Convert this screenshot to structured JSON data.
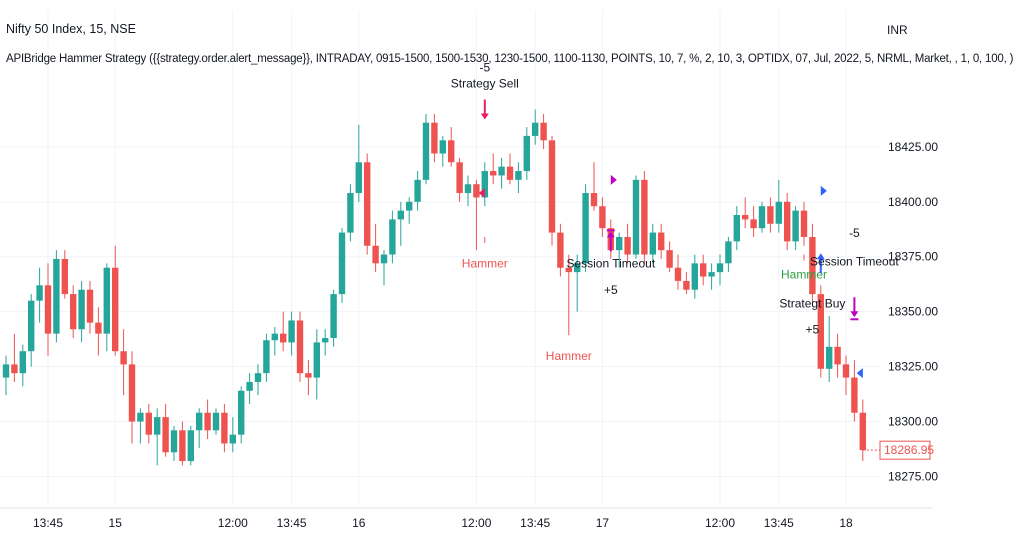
{
  "header": {
    "symbol": "Nifty 50 Index, 15, NSE",
    "strategy": "APIBridge Hammer Strategy ({{strategy.order.alert_message}}, INTRADAY, 0915-1500, 1500-1530, 1230-1500, 1100-1130, POINTS, 10, 7, %, 2, 10, 3, OPTIDX, 07, Jul, 2022, 5, NRML, Market, , 1, 0, 100, )",
    "currency": "INR"
  },
  "last_price": {
    "label": "18286.95",
    "value": 18286.95
  },
  "colors": {
    "up": "#26a69a",
    "down": "#ef5350",
    "buy_arrow": "#2962ff",
    "sell_arrow": "#e91e63",
    "exit_arrow": "#c000c0",
    "hammer_green": "#2e9e3f",
    "grid": "#f0f3fa"
  },
  "chart_data": {
    "type": "candlestick",
    "ylim": [
      18262,
      18460
    ],
    "y_ticks": [
      18275.0,
      18300.0,
      18325.0,
      18350.0,
      18375.0,
      18400.0,
      18425.0
    ],
    "y_tick_labels": [
      "18275.00",
      "18300.00",
      "18325.00",
      "18350.00",
      "18375.00",
      "18400.00",
      "18425.00"
    ],
    "x_tick_labels": [
      {
        "label": "13:45",
        "bar": 5
      },
      {
        "label": "15",
        "bar": 13
      },
      {
        "label": "12:00",
        "bar": 27
      },
      {
        "label": "13:45",
        "bar": 34
      },
      {
        "label": "16",
        "bar": 42
      },
      {
        "label": "12:00",
        "bar": 56
      },
      {
        "label": "13:45",
        "bar": 63
      },
      {
        "label": "17",
        "bar": 71
      },
      {
        "label": "12:00",
        "bar": 85
      },
      {
        "label": "13:45",
        "bar": 92
      },
      {
        "label": "18",
        "bar": 100
      }
    ],
    "candles": [
      [
        18320,
        18330,
        18312,
        18326
      ],
      [
        18326,
        18340,
        18318,
        18322
      ],
      [
        18322,
        18335,
        18316,
        18332
      ],
      [
        18332,
        18358,
        18325,
        18355
      ],
      [
        18355,
        18370,
        18345,
        18362
      ],
      [
        18362,
        18372,
        18330,
        18340
      ],
      [
        18340,
        18378,
        18336,
        18374
      ],
      [
        18374,
        18378,
        18356,
        18358
      ],
      [
        18358,
        18362,
        18338,
        18342
      ],
      [
        18342,
        18364,
        18336,
        18360
      ],
      [
        18360,
        18364,
        18340,
        18345
      ],
      [
        18345,
        18352,
        18330,
        18340
      ],
      [
        18340,
        18372,
        18332,
        18370
      ],
      [
        18370,
        18380,
        18330,
        18332
      ],
      [
        18332,
        18342,
        18312,
        18326
      ],
      [
        18326,
        18332,
        18290,
        18300
      ],
      [
        18300,
        18306,
        18290,
        18304
      ],
      [
        18304,
        18308,
        18290,
        18294
      ],
      [
        18294,
        18306,
        18280,
        18302
      ],
      [
        18302,
        18308,
        18284,
        18286
      ],
      [
        18286,
        18298,
        18282,
        18296
      ],
      [
        18296,
        18300,
        18280,
        18282
      ],
      [
        18282,
        18298,
        18280,
        18296
      ],
      [
        18296,
        18306,
        18288,
        18304
      ],
      [
        18304,
        18310,
        18292,
        18296
      ],
      [
        18296,
        18306,
        18294,
        18304
      ],
      [
        18304,
        18308,
        18286,
        18290
      ],
      [
        18290,
        18302,
        18286,
        18294
      ],
      [
        18294,
        18316,
        18290,
        18314
      ],
      [
        18314,
        18322,
        18308,
        18318
      ],
      [
        18318,
        18326,
        18312,
        18322
      ],
      [
        18322,
        18340,
        18318,
        18337
      ],
      [
        18337,
        18343,
        18330,
        18340
      ],
      [
        18340,
        18350,
        18332,
        18336
      ],
      [
        18336,
        18350,
        18330,
        18346
      ],
      [
        18346,
        18350,
        18318,
        18322
      ],
      [
        18322,
        18328,
        18312,
        18320
      ],
      [
        18320,
        18342,
        18310,
        18336
      ],
      [
        18336,
        18342,
        18330,
        18338
      ],
      [
        18338,
        18360,
        18334,
        18358
      ],
      [
        18358,
        18388,
        18354,
        18386
      ],
      [
        18386,
        18408,
        18382,
        18404
      ],
      [
        18404,
        18435,
        18400,
        18418
      ],
      [
        18418,
        18422,
        18376,
        18380
      ],
      [
        18380,
        18390,
        18368,
        18372
      ],
      [
        18372,
        18378,
        18362,
        18376
      ],
      [
        18376,
        18396,
        18372,
        18392
      ],
      [
        18392,
        18400,
        18380,
        18396
      ],
      [
        18396,
        18402,
        18390,
        18400
      ],
      [
        18400,
        18414,
        18396,
        18410
      ],
      [
        18410,
        18440,
        18408,
        18436
      ],
      [
        18436,
        18440,
        18418,
        18422
      ],
      [
        18422,
        18430,
        18416,
        18428
      ],
      [
        18428,
        18434,
        18416,
        18418
      ],
      [
        18418,
        18420,
        18400,
        18404
      ],
      [
        18404,
        18412,
        18398,
        18408
      ],
      [
        18408,
        18410,
        18378,
        18402
      ],
      [
        18402,
        18418,
        18398,
        18414
      ],
      [
        18414,
        18422,
        18408,
        18412
      ],
      [
        18412,
        18420,
        18406,
        18416
      ],
      [
        18416,
        18422,
        18408,
        18410
      ],
      [
        18410,
        18418,
        18404,
        18414
      ],
      [
        18414,
        18434,
        18410,
        18430
      ],
      [
        18430,
        18442,
        18426,
        18436
      ],
      [
        18436,
        18440,
        18424,
        18428
      ],
      [
        18428,
        18430,
        18380,
        18386
      ],
      [
        18386,
        18390,
        18366,
        18370
      ],
      [
        18370,
        18376,
        18342,
        18368
      ],
      [
        18368,
        18376,
        18350,
        18372
      ],
      [
        18372,
        18408,
        18368,
        18404
      ],
      [
        18404,
        18418,
        18396,
        18398
      ],
      [
        18398,
        18402,
        18384,
        18388
      ],
      [
        18388,
        18392,
        18374,
        18378
      ],
      [
        18378,
        18386,
        18370,
        18384
      ],
      [
        18384,
        18390,
        18372,
        18376
      ],
      [
        18376,
        18412,
        18374,
        18410
      ],
      [
        18410,
        18414,
        18372,
        18376
      ],
      [
        18376,
        18390,
        18372,
        18386
      ],
      [
        18386,
        18390,
        18374,
        18378
      ],
      [
        18378,
        18382,
        18368,
        18370
      ],
      [
        18370,
        18376,
        18360,
        18364
      ],
      [
        18364,
        18368,
        18358,
        18360
      ],
      [
        18360,
        18376,
        18356,
        18372
      ],
      [
        18372,
        18376,
        18362,
        18366
      ],
      [
        18366,
        18372,
        18360,
        18368
      ],
      [
        18368,
        18376,
        18362,
        18372
      ],
      [
        18372,
        18384,
        18368,
        18382
      ],
      [
        18382,
        18398,
        18378,
        18394
      ],
      [
        18394,
        18402,
        18388,
        18392
      ],
      [
        18392,
        18398,
        18384,
        18388
      ],
      [
        18388,
        18400,
        18386,
        18398
      ],
      [
        18398,
        18402,
        18386,
        18390
      ],
      [
        18390,
        18410,
        18386,
        18400
      ],
      [
        18400,
        18404,
        18378,
        18382
      ],
      [
        18382,
        18398,
        18378,
        18396
      ],
      [
        18396,
        18400,
        18380,
        18384
      ],
      [
        18384,
        18390,
        18354,
        18358
      ],
      [
        18358,
        18362,
        18320,
        18324
      ],
      [
        18324,
        18348,
        18318,
        18334
      ],
      [
        18334,
        18340,
        18320,
        18326
      ],
      [
        18326,
        18330,
        18312,
        18320
      ],
      [
        18320,
        18328,
        18300,
        18304
      ],
      [
        18304,
        18310,
        18282,
        18287
      ]
    ],
    "annotations": [
      {
        "kind": "arrow-down",
        "bar": 57,
        "y": 18442,
        "color": "sell",
        "labels": [
          "-5",
          "Strategy Sell"
        ],
        "label_pos": "above"
      },
      {
        "kind": "tick",
        "bar": 57,
        "y": 18384
      },
      {
        "kind": "label",
        "bar": 57,
        "y": 18370,
        "text": "Hammer",
        "color": "down"
      },
      {
        "kind": "tick",
        "bar": 67,
        "y": 18342
      },
      {
        "kind": "label",
        "bar": 67,
        "y": 18328,
        "text": "Hammer",
        "color": "down"
      },
      {
        "kind": "arrow-up",
        "bar": 72,
        "y": 18382,
        "color": "exit"
      },
      {
        "kind": "label",
        "bar": 72,
        "y": 18370,
        "text": "Session Timeout",
        "color": "text"
      },
      {
        "kind": "label",
        "bar": 72,
        "y": 18358,
        "text": "+5",
        "color": "text"
      },
      {
        "kind": "tick",
        "bar": 95,
        "y": 18376
      },
      {
        "kind": "label",
        "bar": 95,
        "y": 18365,
        "text": "Hammer",
        "color": "hammer"
      },
      {
        "kind": "arrow-up",
        "bar": 97,
        "y": 18372,
        "color": "buy"
      },
      {
        "kind": "label",
        "bar": 96,
        "y": 18352,
        "text": "Strategt Buy",
        "color": "text"
      },
      {
        "kind": "label",
        "bar": 96,
        "y": 18340,
        "text": "+5",
        "color": "text"
      },
      {
        "kind": "label",
        "bar": 101,
        "y": 18384,
        "text": "-5",
        "color": "text"
      },
      {
        "kind": "label",
        "bar": 101,
        "y": 18371,
        "text": "Session Timeout",
        "color": "text"
      },
      {
        "kind": "arrow-down",
        "bar": 101,
        "y": 18352,
        "color": "exit"
      },
      {
        "kind": "flag",
        "bar": 57,
        "y": 18404,
        "color": "sell",
        "dir": "left"
      },
      {
        "kind": "flag",
        "bar": 72,
        "y": 18410,
        "color": "exit",
        "dir": "right"
      },
      {
        "kind": "flag",
        "bar": 97,
        "y": 18405,
        "color": "buy",
        "dir": "right"
      },
      {
        "kind": "flag",
        "bar": 102,
        "y": 18322,
        "color": "buy",
        "dir": "left"
      }
    ]
  }
}
